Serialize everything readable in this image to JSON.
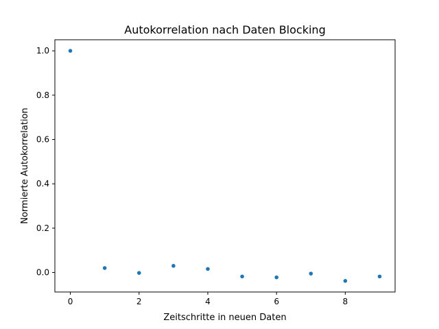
{
  "chart_data": {
    "type": "scatter",
    "title": "Autokorrelation nach Daten Blocking",
    "xlabel": "Zeitschritte in neuen Daten",
    "ylabel": "Normierte Autokorrelation",
    "xlim": [
      -0.45,
      9.45
    ],
    "ylim": [
      -0.088,
      1.05
    ],
    "xticks": [
      0,
      2,
      4,
      6,
      8
    ],
    "xtick_labels": [
      "0",
      "2",
      "4",
      "6",
      "8"
    ],
    "yticks": [
      0.0,
      0.2,
      0.4,
      0.6,
      0.8,
      1.0
    ],
    "ytick_labels": [
      "0.0",
      "0.2",
      "0.4",
      "0.6",
      "0.8",
      "1.0"
    ],
    "grid": false,
    "series": [
      {
        "color": "#1f77b4",
        "x": [
          0,
          1,
          2,
          3,
          4,
          5,
          6,
          7,
          8,
          9
        ],
        "y": [
          1.0,
          0.02,
          -0.002,
          0.03,
          0.016,
          -0.018,
          -0.022,
          -0.005,
          -0.038,
          -0.018
        ]
      }
    ]
  }
}
